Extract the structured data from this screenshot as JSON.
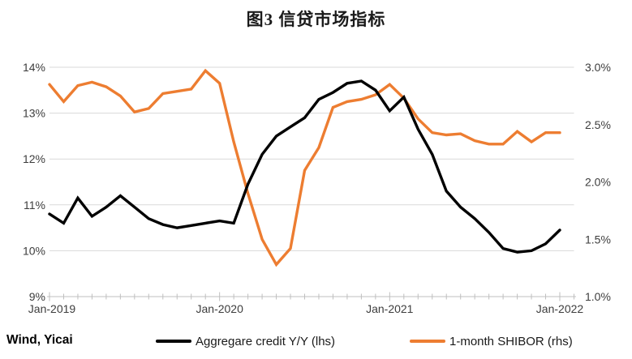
{
  "figure_title": "图3 信贷市场指标",
  "source": "Wind, Yicai",
  "colors": {
    "credit_line": "#000000",
    "shibor_line": "#ED7D31",
    "gridline": "#D9D9D9",
    "axis_line": "#BFBFBF",
    "tick_mark": "#BFBFBF",
    "axis_text": "#3d3d3d"
  },
  "chart_data": {
    "type": "line",
    "title": "图3 信贷市场指标",
    "grid": true,
    "legend_position": "bottom",
    "x_tick_labels": [
      "Jan-2019",
      "Jan-2020",
      "Jan-2021",
      "Jan-2022"
    ],
    "x": [
      "Jan-2019",
      "Feb-2019",
      "Mar-2019",
      "Apr-2019",
      "May-2019",
      "Jun-2019",
      "Jul-2019",
      "Aug-2019",
      "Sep-2019",
      "Oct-2019",
      "Nov-2019",
      "Dec-2019",
      "Jan-2020",
      "Feb-2020",
      "Mar-2020",
      "Apr-2020",
      "May-2020",
      "Jun-2020",
      "Jul-2020",
      "Aug-2020",
      "Sep-2020",
      "Oct-2020",
      "Nov-2020",
      "Dec-2020",
      "Jan-2021",
      "Feb-2021",
      "Mar-2021",
      "Apr-2021",
      "May-2021",
      "Jun-2021",
      "Jul-2021",
      "Aug-2021",
      "Sep-2021",
      "Oct-2021",
      "Nov-2021",
      "Dec-2021",
      "Jan-2022"
    ],
    "left_axis": {
      "ticks": [
        "14%",
        "13%",
        "12%",
        "11%",
        "10%",
        "9%"
      ],
      "max": 14,
      "min": 9,
      "unit": "%"
    },
    "right_axis": {
      "ticks": [
        "3.0%",
        "2.5%",
        "2.0%",
        "1.5%",
        "1.0%"
      ],
      "max": 3.0,
      "min": 1.0,
      "unit": "%"
    },
    "series": [
      {
        "name": "Aggregare credit Y/Y (lhs)",
        "axis": "left",
        "color": "#000000",
        "values": [
          10.8,
          10.6,
          11.15,
          10.75,
          10.95,
          11.2,
          10.95,
          10.7,
          10.57,
          10.5,
          10.55,
          10.6,
          10.65,
          10.6,
          11.45,
          12.1,
          12.5,
          12.7,
          12.9,
          13.3,
          13.45,
          13.65,
          13.7,
          13.5,
          13.05,
          13.35,
          12.65,
          12.1,
          11.3,
          10.95,
          10.7,
          10.4,
          10.05,
          9.97,
          10.0,
          10.15,
          10.45
        ]
      },
      {
        "name": "1-month SHIBOR (rhs)",
        "axis": "right",
        "color": "#ED7D31",
        "values": [
          2.85,
          2.7,
          2.84,
          2.87,
          2.83,
          2.75,
          2.61,
          2.64,
          2.77,
          2.79,
          2.81,
          2.97,
          2.86,
          2.35,
          1.9,
          1.5,
          1.28,
          1.42,
          2.1,
          2.3,
          2.65,
          2.7,
          2.72,
          2.76,
          2.85,
          2.73,
          2.55,
          2.43,
          2.41,
          2.42,
          2.36,
          2.33,
          2.33,
          2.44,
          2.35,
          2.43,
          2.43
        ]
      }
    ]
  }
}
